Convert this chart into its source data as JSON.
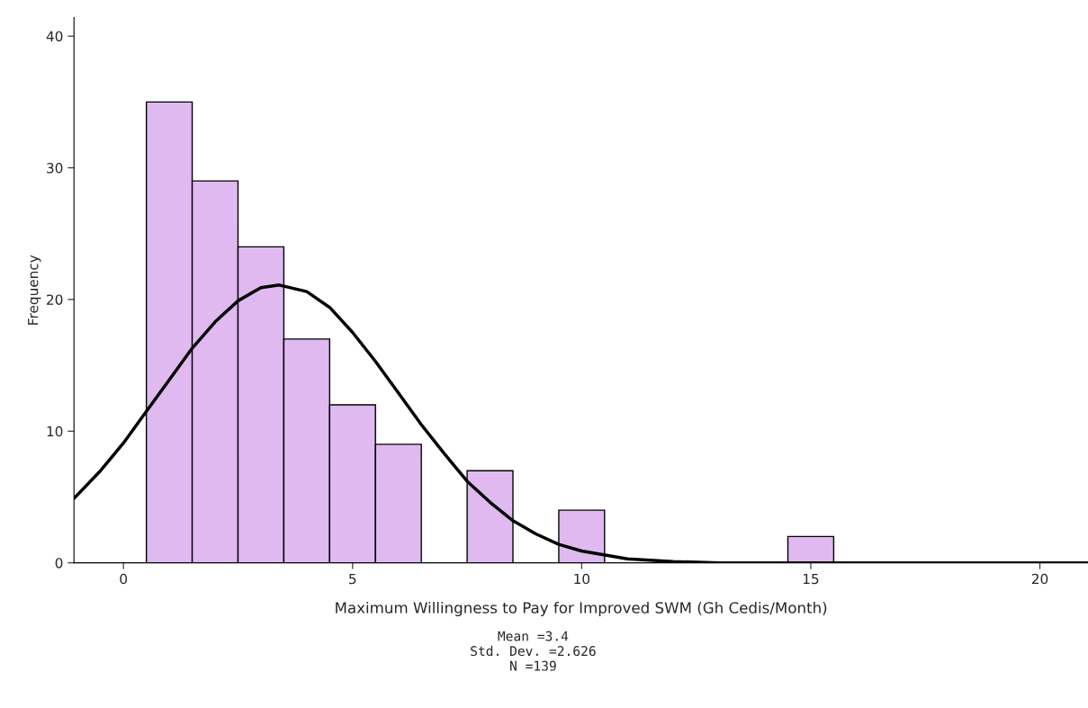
{
  "chart_data": {
    "type": "histogram",
    "xlabel": "Maximum Willingness to Pay for Improved SWM (Gh Cedis/Month)",
    "ylabel": "Frequency",
    "bins": [
      0.5,
      1.5,
      2.5,
      3.5,
      4.5,
      5.5,
      6.5,
      7.5,
      8.5,
      9.5,
      10.5,
      11.5,
      12.5,
      13.5,
      14.5,
      15.5
    ],
    "values": [
      35,
      29,
      24,
      17,
      12,
      9,
      0,
      7,
      0,
      4,
      0,
      0,
      0,
      0,
      2
    ],
    "color": "#dfb9f0",
    "series": [
      {
        "type": "line",
        "color": "#000000",
        "x": [
          -1.08,
          -0.5,
          0,
          0.5,
          1,
          1.5,
          2,
          2.5,
          3,
          3.4,
          4,
          4.5,
          5,
          5.5,
          6,
          6.5,
          7,
          7.5,
          8,
          8.5,
          9,
          9.5,
          10,
          11,
          12,
          13,
          14,
          21.05
        ],
        "values": [
          4.9,
          7.0,
          9.1,
          11.5,
          13.9,
          16.3,
          18.3,
          19.9,
          20.9,
          21.1,
          20.6,
          19.4,
          17.5,
          15.3,
          12.9,
          10.5,
          8.3,
          6.2,
          4.6,
          3.2,
          2.2,
          1.4,
          0.9,
          0.3,
          0.1,
          0,
          0,
          0
        ]
      }
    ],
    "xlim": [
      -1.08,
      21.05
    ],
    "ylim": [
      0,
      41.4
    ],
    "xticks": [
      0,
      5,
      10,
      15,
      20
    ],
    "yticks": [
      0,
      10,
      20,
      30,
      40
    ],
    "grid": false,
    "legend": false,
    "annotations": [
      "Mean =3.4",
      "Std. Dev. =2.626",
      "N =139"
    ]
  }
}
